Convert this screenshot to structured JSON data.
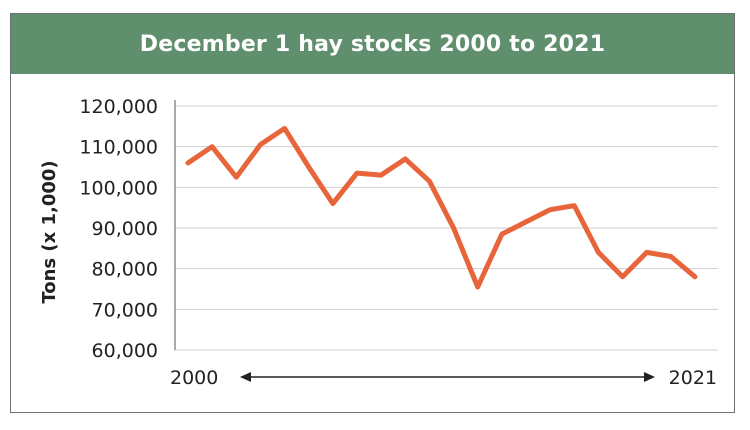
{
  "chart_data": {
    "type": "line",
    "title": "December 1 hay stocks 2000 to 2021",
    "ylabel": "Tons (x 1,000)",
    "xlabel": "",
    "ylim": [
      60000,
      120000
    ],
    "yticks": [
      "120,000",
      "110,000",
      "100,000",
      "90,000",
      "80,000",
      "70,000",
      "60,000"
    ],
    "ytick_values": [
      120000,
      110000,
      100000,
      90000,
      80000,
      70000,
      60000
    ],
    "x_start_label": "2000",
    "x_end_label": "2021",
    "grid": true,
    "colors": {
      "line": "#e8643a",
      "header": "#5f8f6c",
      "grid": "#cfcfcf"
    },
    "series": [
      {
        "x": [
          2000,
          2001,
          2002,
          2003,
          2004,
          2005,
          2006,
          2007,
          2008,
          2009,
          2010,
          2011,
          2012,
          2013,
          2014,
          2015,
          2016,
          2017,
          2018,
          2019,
          2020,
          2021
        ],
        "values": [
          106000,
          110000,
          102500,
          110500,
          114500,
          105000,
          96000,
          103500,
          103000,
          107000,
          101500,
          90000,
          75500,
          88500,
          91500,
          94500,
          95500,
          84000,
          78000,
          84000,
          83000,
          78000
        ]
      }
    ]
  }
}
